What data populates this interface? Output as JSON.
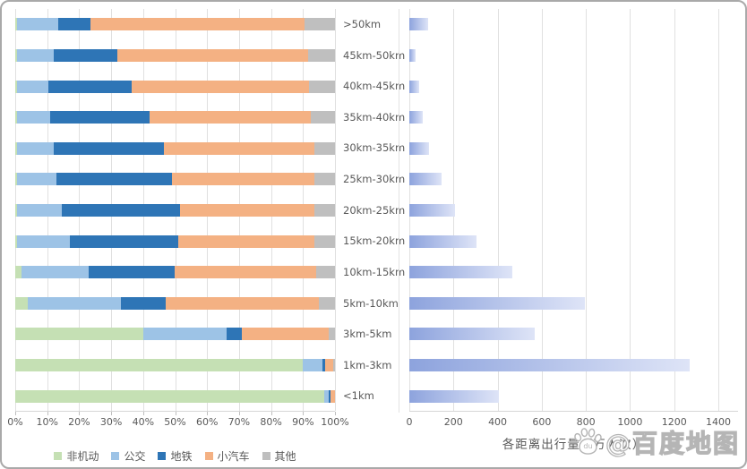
{
  "colors": {
    "frame_border": "#a9a9a9",
    "gridline": "#e0e0e0",
    "axis_text": "#595959",
    "volume_bar_gradient_start": "#8da3dd",
    "volume_bar_gradient_end": "#dee4f7"
  },
  "watermark": {
    "icon": "paw-icon",
    "paw_text": "du",
    "text": "@百度地图"
  },
  "chart_data": [
    {
      "type": "bar",
      "orientation": "horizontal",
      "stacked": true,
      "unit": "%",
      "grid": true,
      "legend_position": "bottom",
      "xlim": [
        0,
        100
      ],
      "x_ticks": [
        "0%",
        "10%",
        "20%",
        "30%",
        "40%",
        "50%",
        "60%",
        "70%",
        "80%",
        "90%",
        "100%"
      ],
      "categories": [
        ">50km",
        "45km-50km",
        "40km-45km",
        "35km-40km",
        "30km-35km",
        "25km-30km",
        "20km-25km",
        "15km-20km",
        "10km-15km",
        "5km-10km",
        "3km-5km",
        "1km-3km",
        "<1km"
      ],
      "series": [
        {
          "name": "非机动",
          "color": "#C5E0B4",
          "values": [
            0.5,
            0.5,
            0.5,
            0.5,
            0.5,
            0.5,
            0.5,
            0.5,
            2,
            4,
            40,
            90,
            96.5
          ]
        },
        {
          "name": "公交",
          "color": "#9DC3E6",
          "values": [
            13,
            11.5,
            10,
            10.5,
            11.5,
            12.5,
            14,
            16.5,
            21,
            29,
            26,
            6,
            1.5
          ]
        },
        {
          "name": "地铁",
          "color": "#2E75B6",
          "values": [
            10,
            20,
            26,
            31,
            34.5,
            36,
            37,
            34,
            27,
            14,
            5,
            1,
            0.5
          ]
        },
        {
          "name": "小汽车",
          "color": "#F4B183",
          "values": [
            67,
            59.5,
            55.5,
            50.5,
            47,
            44.5,
            42,
            42.5,
            44,
            48,
            27,
            2.5,
            1.5
          ]
        },
        {
          "name": "其他",
          "color": "#BFBFBF",
          "values": [
            9.5,
            8.5,
            8,
            7.5,
            6.5,
            6.5,
            6.5,
            6.5,
            6,
            5,
            2,
            0.5,
            0
          ]
        }
      ]
    },
    {
      "type": "bar",
      "orientation": "horizontal",
      "stacked": false,
      "grid": true,
      "xlabel": "各距离出行量（万人次）",
      "xlim": [
        0,
        1400
      ],
      "x_ticks": [
        "0",
        "200",
        "400",
        "600",
        "800",
        "1000",
        "1200",
        "1400"
      ],
      "categories": [
        ">50km",
        "45km-50km",
        "40km-45km",
        "35km-40km",
        "30km-35km",
        "25km-30km",
        "20km-25km",
        "15km-20km",
        "10km-15km",
        "5km-10km",
        "3km-5km",
        "1km-3km",
        "<1km"
      ],
      "values": [
        85,
        30,
        45,
        60,
        90,
        145,
        205,
        305,
        465,
        795,
        570,
        1270,
        405
      ]
    }
  ]
}
